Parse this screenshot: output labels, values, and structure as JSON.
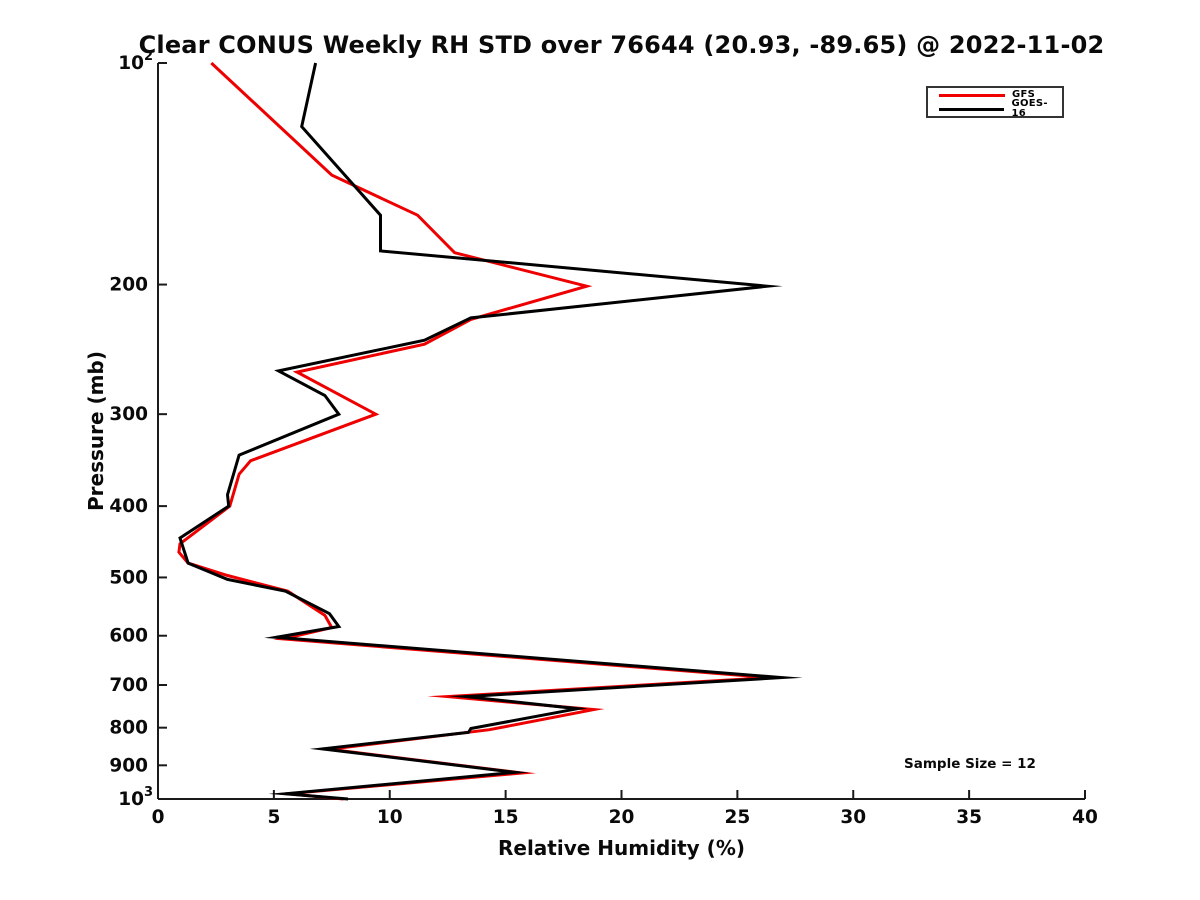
{
  "chart_data": {
    "type": "line",
    "title": "Clear CONUS Weekly RH STD over 76644 (20.93, -89.65) @ 2022-11-02",
    "xlabel": "Relative Humidity (%)",
    "ylabel": "Pressure (mb)",
    "annotation": "Sample Size = 12",
    "grid": false,
    "x_axis": {
      "min": 0,
      "max": 40,
      "ticks": [
        0,
        5,
        10,
        15,
        20,
        25,
        30,
        35,
        40
      ]
    },
    "y_axis": {
      "scale": "log10",
      "min": 100,
      "max": 1000,
      "orientation": "pressure increases downward",
      "ticks": [
        {
          "p": 100,
          "base": "10",
          "exp": "2"
        },
        {
          "p": 200,
          "label": "200"
        },
        {
          "p": 300,
          "label": "300"
        },
        {
          "p": 400,
          "label": "400"
        },
        {
          "p": 500,
          "label": "500"
        },
        {
          "p": 600,
          "label": "600"
        },
        {
          "p": 700,
          "label": "700"
        },
        {
          "p": 800,
          "label": "800"
        },
        {
          "p": 900,
          "label": "900"
        },
        {
          "p": 1000,
          "base": "10",
          "exp": "3"
        }
      ]
    },
    "legend": {
      "position": "upper right",
      "entries": [
        {
          "label": "GFS",
          "color": "#ee0000"
        },
        {
          "label": "GOES-16",
          "color": "#000000"
        }
      ]
    },
    "points_format": "[pressure_mb, rh_std_percent]",
    "series": [
      {
        "name": "GFS",
        "color": "#ee0000",
        "points": [
          [
            100,
            2.3
          ],
          [
            142,
            7.5
          ],
          [
            161,
            11.2
          ],
          [
            181,
            12.8
          ],
          [
            201,
            18.5
          ],
          [
            223,
            13.5
          ],
          [
            241,
            11.5
          ],
          [
            263,
            6.0
          ],
          [
            300,
            9.4
          ],
          [
            347,
            4.0
          ],
          [
            362,
            3.5
          ],
          [
            400,
            3.1
          ],
          [
            450,
            0.95
          ],
          [
            462,
            0.9
          ],
          [
            478,
            1.3
          ],
          [
            497,
            3.0
          ],
          [
            522,
            5.6
          ],
          [
            563,
            7.2
          ],
          [
            585,
            7.5
          ],
          [
            606,
            5.4
          ],
          [
            684,
            26.4
          ],
          [
            726,
            12.5
          ],
          [
            756,
            18.8
          ],
          [
            805,
            14.3
          ],
          [
            856,
            7.4
          ],
          [
            922,
            15.7
          ],
          [
            984,
            5.6
          ],
          [
            1000,
            8.0
          ]
        ]
      },
      {
        "name": "GOES-16",
        "color": "#000000",
        "points": [
          [
            100,
            6.8
          ],
          [
            122,
            6.2
          ],
          [
            161,
            9.6
          ],
          [
            180,
            9.6
          ],
          [
            201,
            26.3
          ],
          [
            222,
            13.5
          ],
          [
            238,
            11.5
          ],
          [
            262,
            5.2
          ],
          [
            283,
            7.2
          ],
          [
            300,
            7.8
          ],
          [
            341,
            3.5
          ],
          [
            386,
            3.0
          ],
          [
            400,
            3.05
          ],
          [
            442,
            0.95
          ],
          [
            478,
            1.3
          ],
          [
            503,
            3.0
          ],
          [
            522,
            5.5
          ],
          [
            560,
            7.4
          ],
          [
            583,
            7.8
          ],
          [
            603,
            5.1
          ],
          [
            684,
            26.9
          ],
          [
            726,
            13.3
          ],
          [
            754,
            18.1
          ],
          [
            802,
            13.5
          ],
          [
            812,
            13.4
          ],
          [
            855,
            7.1
          ],
          [
            920,
            15.4
          ],
          [
            984,
            5.5
          ],
          [
            1000,
            8.2
          ]
        ]
      }
    ]
  }
}
